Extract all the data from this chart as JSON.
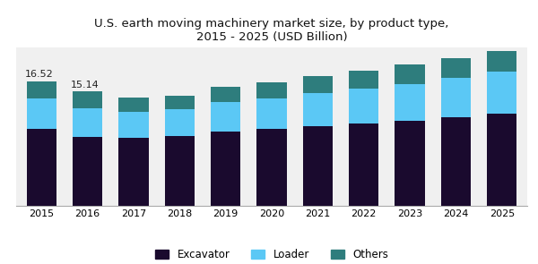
{
  "years": [
    2015,
    2016,
    2017,
    2018,
    2019,
    2020,
    2021,
    2022,
    2023,
    2024,
    2025
  ],
  "excavator": [
    10.2,
    9.1,
    9.0,
    9.3,
    9.9,
    10.2,
    10.6,
    10.9,
    11.3,
    11.8,
    12.2
  ],
  "loader": [
    4.1,
    3.8,
    3.5,
    3.5,
    3.9,
    4.1,
    4.4,
    4.6,
    4.9,
    5.2,
    5.6
  ],
  "others": [
    2.22,
    2.24,
    1.85,
    1.8,
    2.0,
    2.1,
    2.2,
    2.4,
    2.5,
    2.6,
    2.7
  ],
  "total_labels": {
    "2015": "16.52",
    "2016": "15.14"
  },
  "colors": {
    "excavator": "#1a0a2e",
    "loader": "#5bc8f5",
    "others": "#2e7d7d"
  },
  "title": "U.S. earth moving machinery market size, by product type,\n2015 - 2025 (USD Billion)",
  "legend_labels": [
    "Excavator",
    "Loader",
    "Others"
  ],
  "title_fontsize": 9.5,
  "background_color": "#ffffff",
  "plot_bg_color": "#f0f0f0",
  "bar_width": 0.65,
  "ylim": [
    0,
    21
  ]
}
